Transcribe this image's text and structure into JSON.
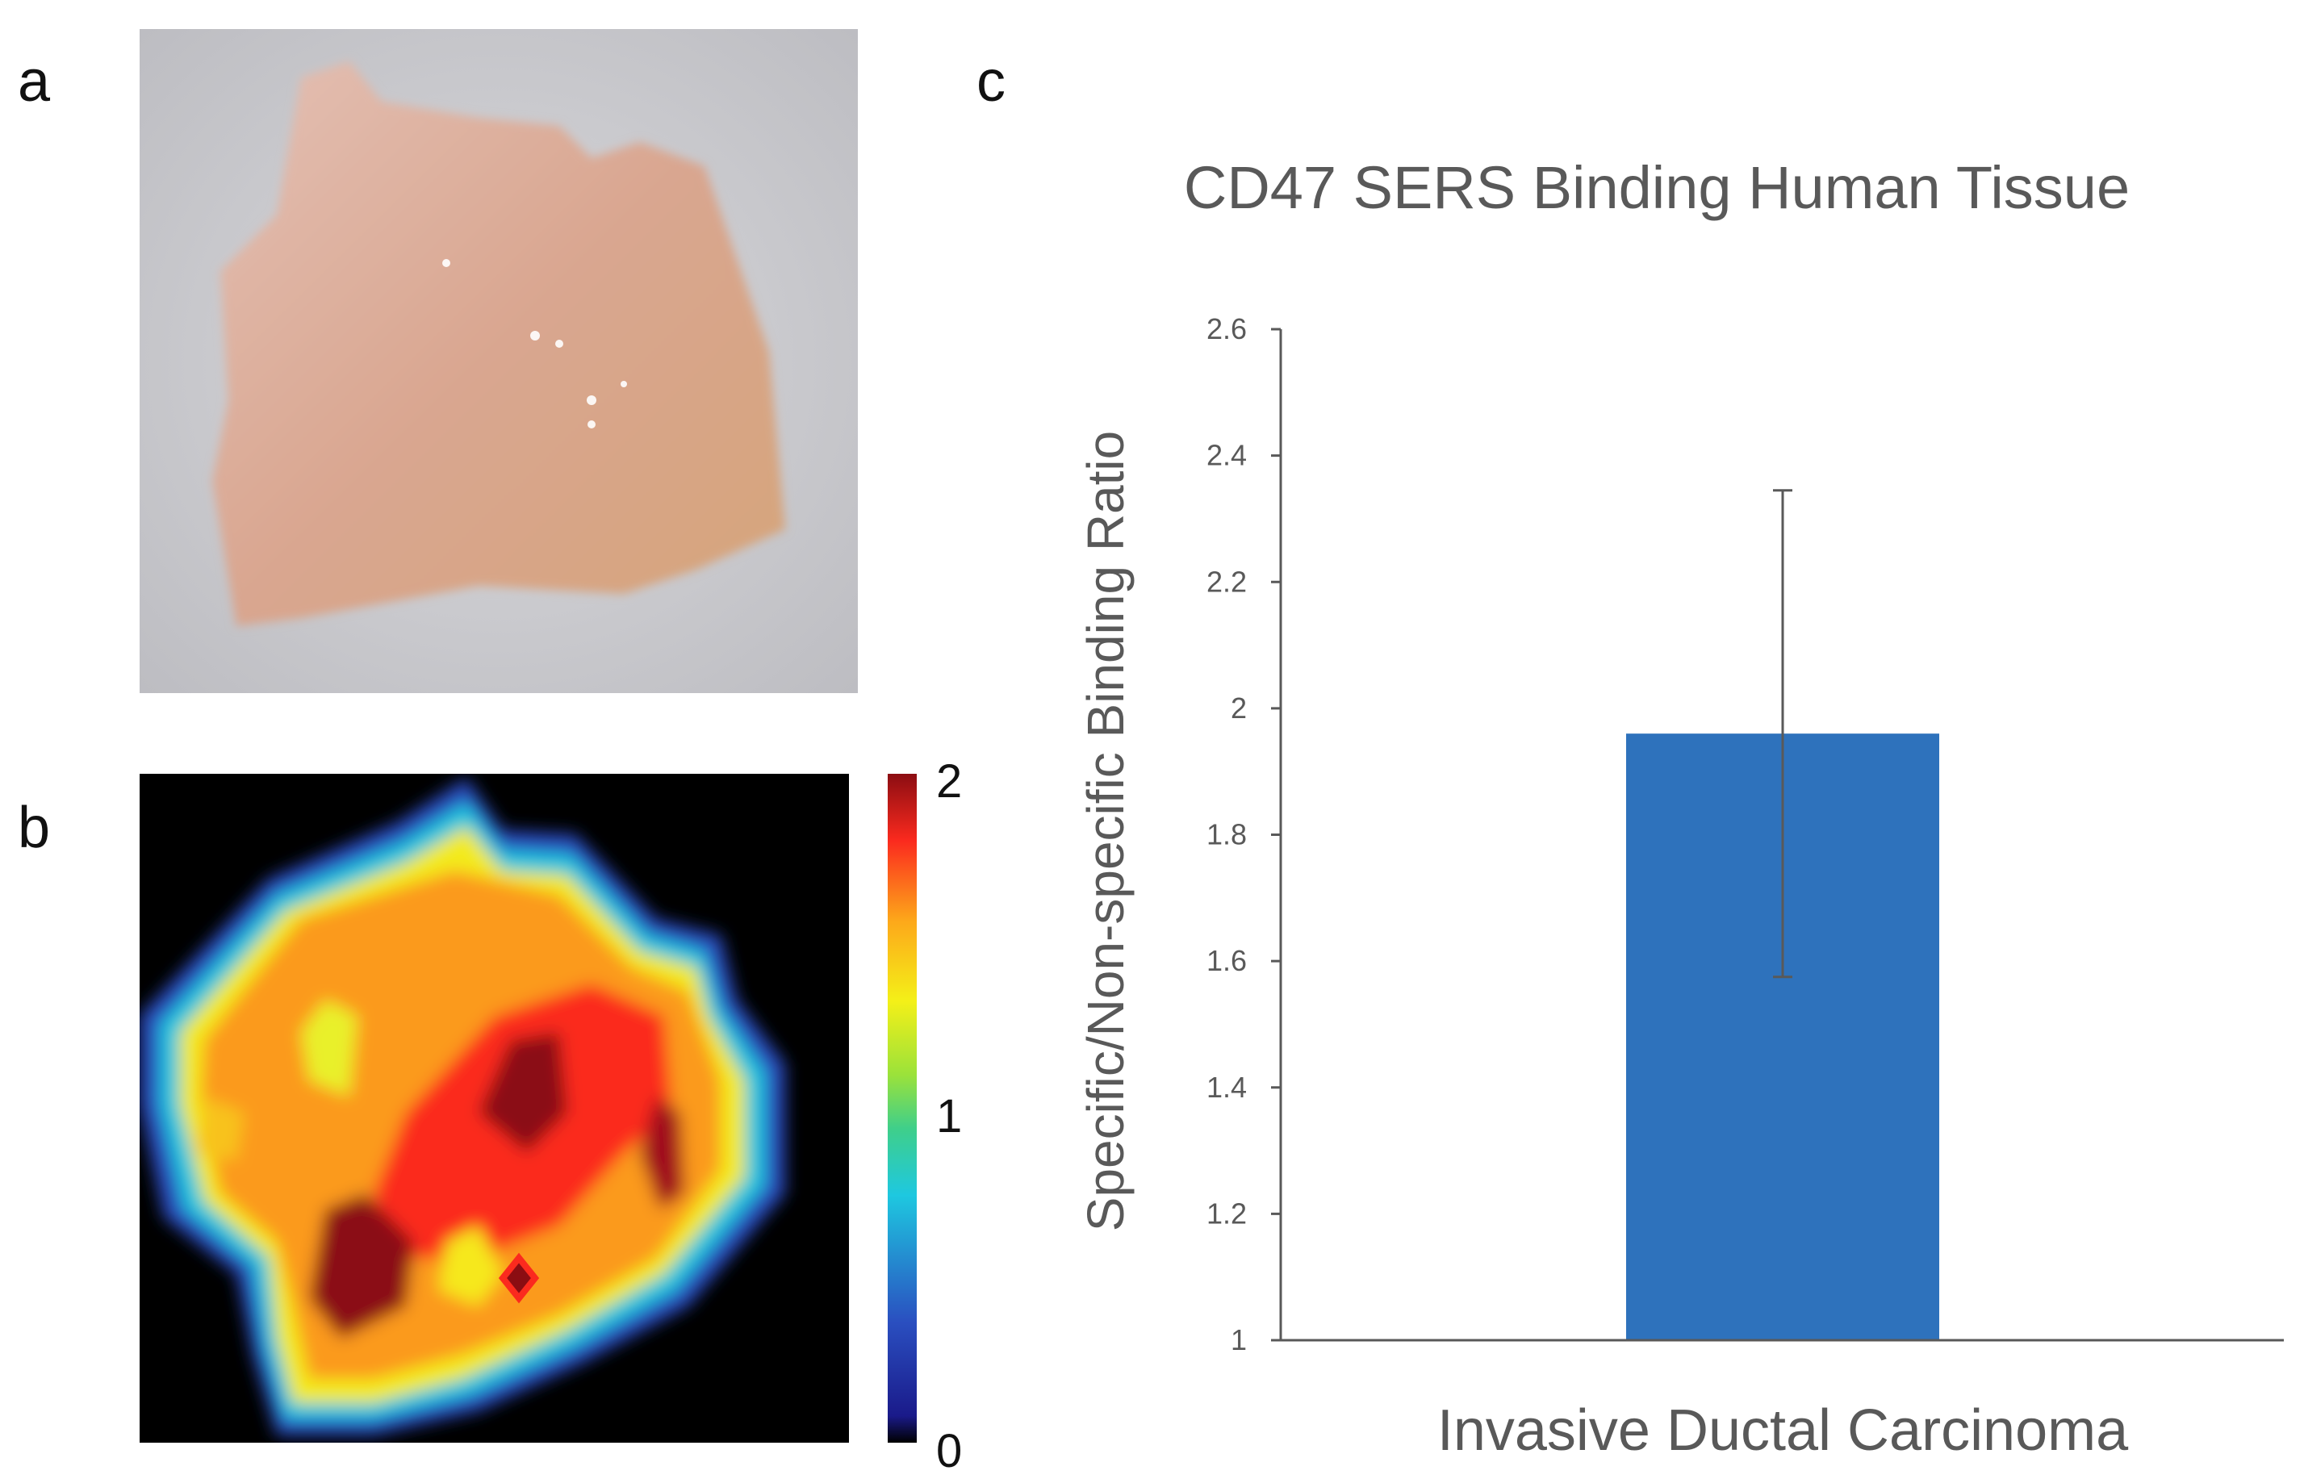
{
  "panels": {
    "a": "a",
    "b": "b",
    "c": "c"
  },
  "colorbar": {
    "ticks": [
      "2",
      "1",
      "0"
    ],
    "min": 0,
    "max": 2
  },
  "chart_data": {
    "type": "bar",
    "title": "CD47 SERS Binding Human Tissue",
    "xlabel": "Invasive Ductal Carcinoma",
    "ylabel": "Specific/Non-specific Binding Ratio",
    "categories": [
      "Invasive Ductal Carcinoma"
    ],
    "values": [
      1.96
    ],
    "error_upper": [
      2.345
    ],
    "error_lower": [
      1.575
    ],
    "ylim": [
      1,
      2.6
    ],
    "yticks": [
      "1",
      "1.2",
      "1.4",
      "1.6",
      "1.8",
      "2",
      "2.2",
      "2.4",
      "2.6"
    ],
    "bar_color": "#2E72BC",
    "grid": false
  }
}
